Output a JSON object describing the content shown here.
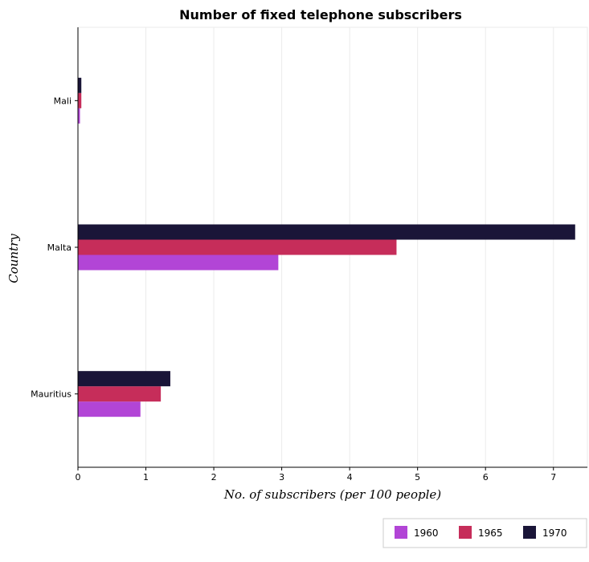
{
  "chart_data": {
    "type": "bar",
    "orientation": "horizontal",
    "title": "Number of fixed telephone subscribers",
    "xlabel": "No. of subscribers (per 100 people)",
    "ylabel": "Country",
    "categories": [
      "Mali",
      "Malta",
      "Mauritius"
    ],
    "series": [
      {
        "name": "1960",
        "color": "#b245d6",
        "values": [
          0.03,
          2.95,
          0.92
        ]
      },
      {
        "name": "1965",
        "color": "#c62d5a",
        "values": [
          0.05,
          4.69,
          1.22
        ]
      },
      {
        "name": "1970",
        "color": "#1a1538",
        "values": [
          0.05,
          7.32,
          1.36
        ]
      }
    ],
    "xlim": [
      0,
      7.5
    ],
    "xticks": [
      0,
      1,
      2,
      3,
      4,
      5,
      6,
      7
    ],
    "grid": true,
    "legend_position": "bottom-right"
  }
}
